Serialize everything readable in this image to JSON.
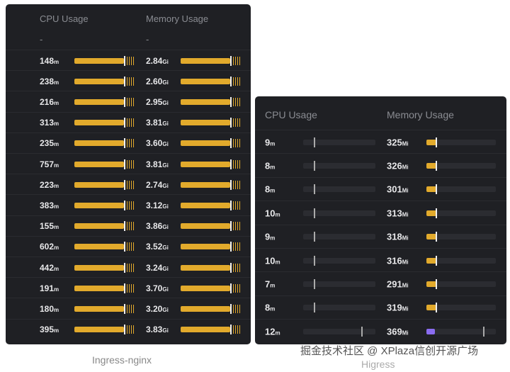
{
  "left_panel": {
    "caption": "Ingress-nginx",
    "cpu_header": "CPU Usage",
    "mem_header": "Memory Usage",
    "placeholder_cpu": "-",
    "placeholder_mem": "-",
    "cpu_unit": "m",
    "mem_unit": "Gi",
    "rows": [
      [
        "148",
        "2.84"
      ],
      [
        "238",
        "2.60"
      ],
      [
        "216",
        "2.95"
      ],
      [
        "313",
        "3.81"
      ],
      [
        "235",
        "3.60"
      ],
      [
        "757",
        "3.81"
      ],
      [
        "223",
        "2.74"
      ],
      [
        "383",
        "3.12"
      ],
      [
        "155",
        "3.86"
      ],
      [
        "602",
        "3.52"
      ],
      [
        "442",
        "3.24"
      ],
      [
        "191",
        "3.70"
      ],
      [
        "180",
        "3.20"
      ],
      [
        "395",
        "3.83"
      ]
    ]
  },
  "right_panel": {
    "caption": "Higress",
    "cpu_header": "CPU Usage",
    "mem_header": "Memory Usage",
    "cpu_unit": "m",
    "mem_unit": "Mi",
    "rows": [
      [
        "9",
        "325"
      ],
      [
        "8",
        "326"
      ],
      [
        "8",
        "301"
      ],
      [
        "10",
        "313"
      ],
      [
        "9",
        "318"
      ],
      [
        "10",
        "316"
      ],
      [
        "7",
        "291"
      ],
      [
        "8",
        "319"
      ],
      [
        "12",
        "369"
      ]
    ]
  },
  "colors": {
    "bar_fill": "#e2aa2c",
    "highlight_fill": "#8a6cf0",
    "panel_bg": "#1f2024"
  },
  "watermark": "掘金技术社区 @ XPlaza信创开源广场"
}
